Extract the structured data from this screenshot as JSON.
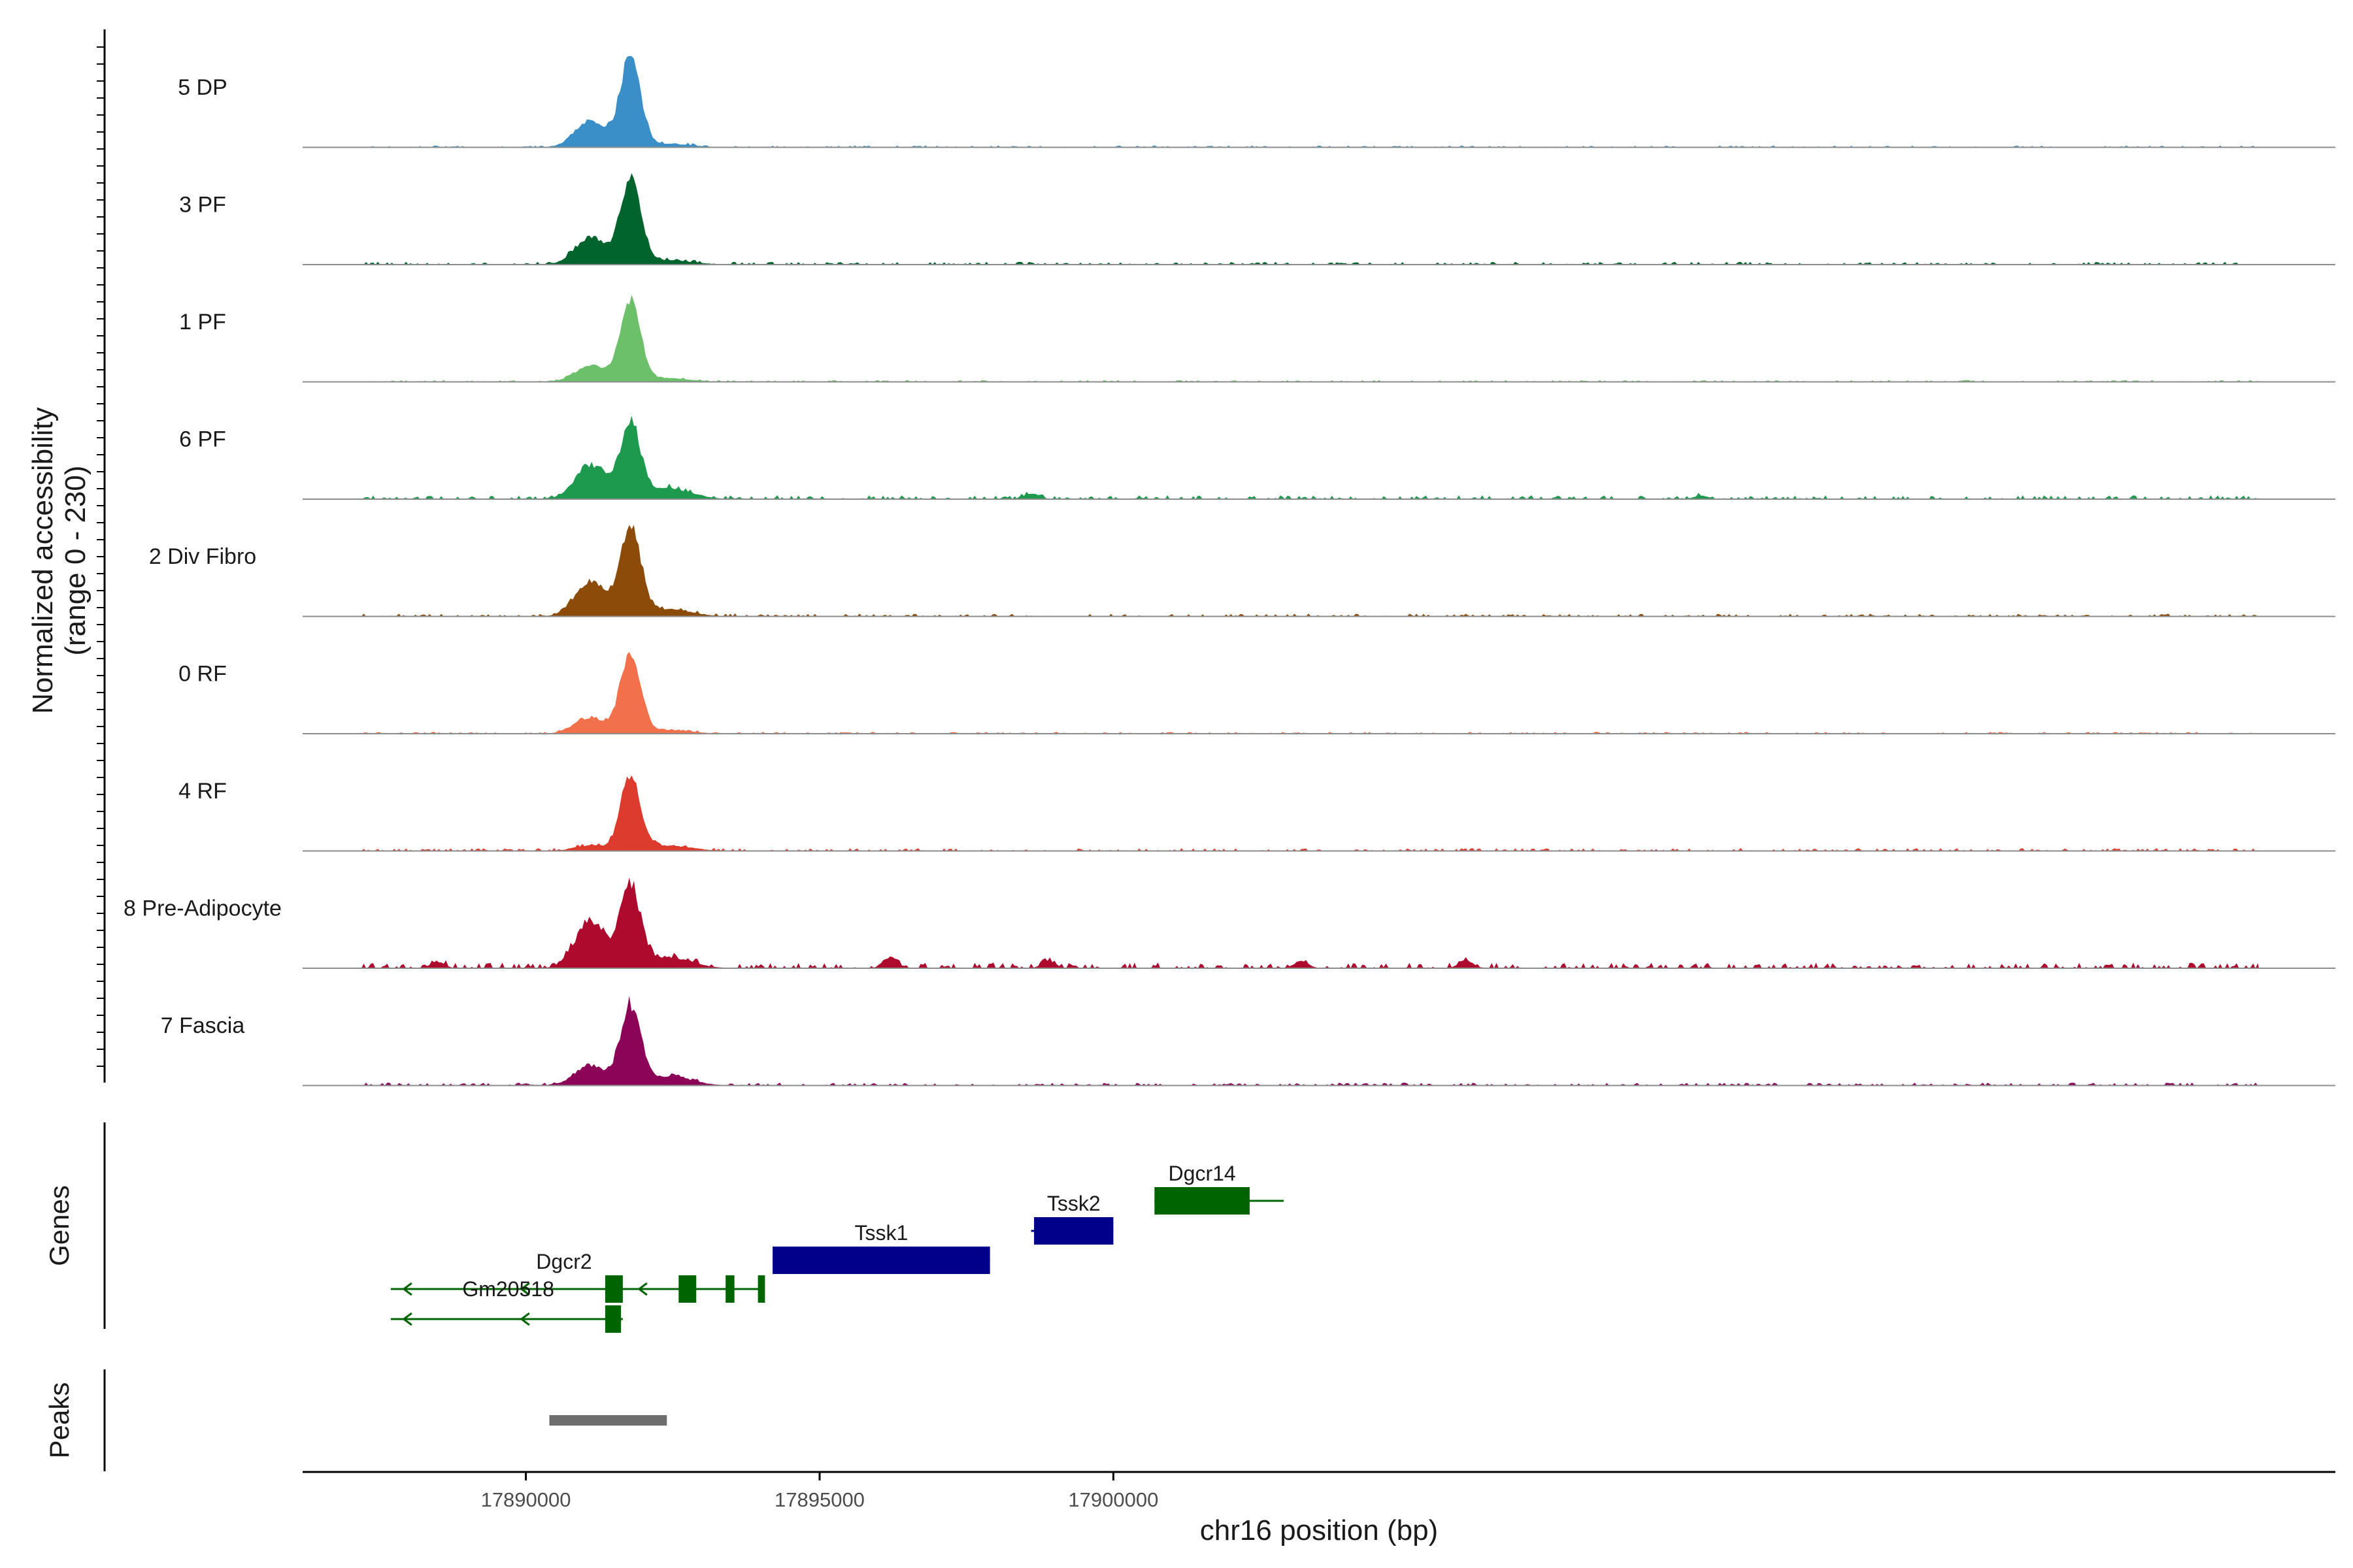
{
  "chart_data": {
    "type": "area",
    "title": "",
    "xlabel": "chr16 position (bp)",
    "ylabel": "Normalized accessibility",
    "ylabel_range": "(range 0 - 230)",
    "xlim": [
      17886200,
      17920800
    ],
    "ylim": [
      0,
      230
    ],
    "x_ticks": [
      17890000,
      17895000,
      17900000
    ],
    "x_tick_labels": [
      "17890000",
      "17895000",
      "17900000"
    ],
    "panels": {
      "genes": "Genes",
      "peaks": "Peaks"
    },
    "tracks": [
      {
        "name": "5 DP",
        "color": "#3A8FC9",
        "peak_rel": 1.0,
        "left_rel": 0.3,
        "mid_rel": 0.04,
        "noise": 0.02,
        "blips": []
      },
      {
        "name": "3 PF",
        "color": "#00642C",
        "peak_rel": 0.95,
        "left_rel": 0.3,
        "mid_rel": 0.05,
        "noise": 0.03,
        "blips": []
      },
      {
        "name": "1 PF",
        "color": "#6CC06A",
        "peak_rel": 0.9,
        "left_rel": 0.18,
        "mid_rel": 0.04,
        "noise": 0.02,
        "blips": []
      },
      {
        "name": "6 PF",
        "color": "#1E9A4E",
        "peak_rel": 0.8,
        "left_rel": 0.38,
        "mid_rel": 0.12,
        "noise": 0.04,
        "blips": [
          [
            17898600,
            0.06
          ],
          [
            17910000,
            0.04
          ]
        ]
      },
      {
        "name": "2 Div Fibro",
        "color": "#8C4B08",
        "peak_rel": 1.0,
        "left_rel": 0.38,
        "mid_rel": 0.08,
        "noise": 0.03,
        "blips": []
      },
      {
        "name": "0 RF",
        "color": "#F2704A",
        "peak_rel": 0.9,
        "left_rel": 0.18,
        "mid_rel": 0.04,
        "noise": 0.02,
        "blips": []
      },
      {
        "name": "4 RF",
        "color": "#DC3B2D",
        "peak_rel": 0.78,
        "left_rel": 0.06,
        "mid_rel": 0.06,
        "noise": 0.03,
        "blips": []
      },
      {
        "name": "8 Pre-Adipocyte",
        "color": "#AE0A2E",
        "peak_rel": 0.88,
        "left_rel": 0.52,
        "mid_rel": 0.12,
        "noise": 0.06,
        "blips": [
          [
            17888500,
            0.07
          ],
          [
            17896200,
            0.12
          ],
          [
            17898900,
            0.08
          ],
          [
            17903200,
            0.08
          ],
          [
            17906000,
            0.09
          ]
        ]
      },
      {
        "name": "7 Fascia",
        "color": "#8C0458",
        "peak_rel": 0.85,
        "left_rel": 0.22,
        "mid_rel": 0.1,
        "noise": 0.03,
        "blips": []
      }
    ],
    "genes": [
      {
        "name": "Dgcr2",
        "strand": "-",
        "start": 17887700,
        "end": 17894050,
        "row": 2,
        "color": "#006400",
        "exons": [
          [
            17891350,
            17891650
          ],
          [
            17892600,
            17892900
          ],
          [
            17893400,
            17893550
          ],
          [
            17893950,
            17894070
          ]
        ]
      },
      {
        "name": "Gm20518",
        "strand": "-",
        "start": 17887700,
        "end": 17891650,
        "row": 3,
        "color": "#006400",
        "exons": [
          [
            17891350,
            17891620
          ]
        ]
      },
      {
        "name": "Tssk1",
        "strand": "+",
        "start": 17894200,
        "end": 17897900,
        "row": 1,
        "color": "#00008B",
        "exons": [
          [
            17894200,
            17897900
          ]
        ]
      },
      {
        "name": "Tssk2",
        "strand": "+",
        "start": 17898600,
        "end": 17900000,
        "row": 0.5,
        "color": "#00008B",
        "exons": [
          [
            17898650,
            17900000
          ]
        ]
      },
      {
        "name": "Dgcr14",
        "strand": "-",
        "start": 17900700,
        "end": 17902900,
        "row": 0,
        "color": "#006400",
        "exons": [
          [
            17900700,
            17902320
          ]
        ]
      }
    ],
    "peaks": [
      {
        "start": 17890400,
        "end": 17892400,
        "color": "#6E6E6E"
      }
    ]
  }
}
